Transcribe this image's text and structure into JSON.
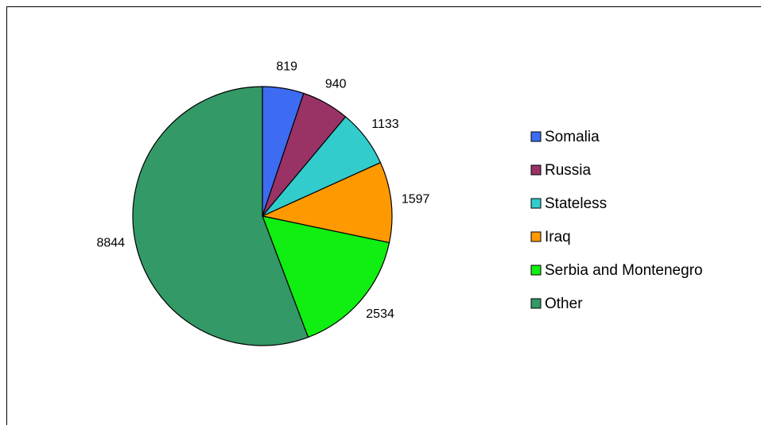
{
  "chart_data": {
    "type": "pie",
    "categories": [
      "Somalia",
      "Russia",
      "Stateless",
      "Iraq",
      "Serbia and Montenegro",
      "Other"
    ],
    "values": [
      819,
      940,
      1133,
      1597,
      2534,
      8844
    ],
    "colors": [
      "#3d6cf2",
      "#993366",
      "#33cccc",
      "#ff9900",
      "#11ee11",
      "#339966"
    ],
    "legend": "right"
  }
}
